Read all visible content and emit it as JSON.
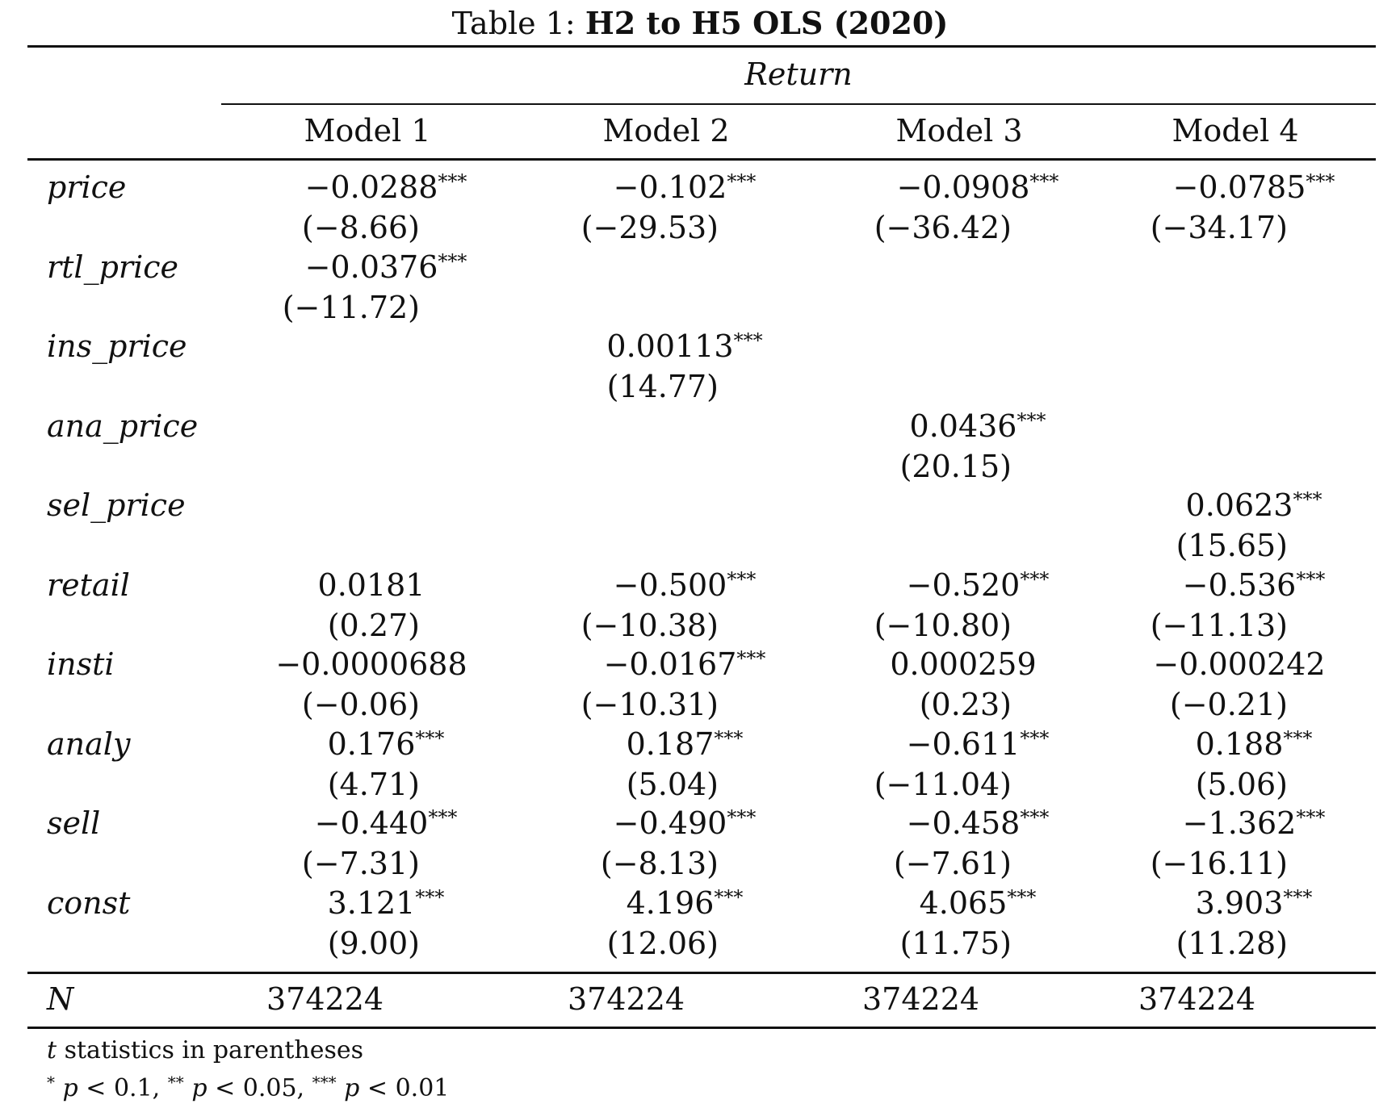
{
  "caption": {
    "prefix": "Table 1:",
    "title": "H2 to H5 OLS (2020)"
  },
  "dependent_variable": "Return",
  "models": [
    "Model 1",
    "Model 2",
    "Model 3",
    "Model 4"
  ],
  "rows": [
    {
      "label": "price",
      "cells": [
        {
          "coef": "−0.0288",
          "stars": "***",
          "t": "(−8.66)"
        },
        {
          "coef": "−0.102",
          "stars": "***",
          "t": "(−29.53)"
        },
        {
          "coef": "−0.0908",
          "stars": "***",
          "t": "(−36.42)"
        },
        {
          "coef": "−0.0785",
          "stars": "***",
          "t": "(−34.17)"
        }
      ]
    },
    {
      "label": "rtl_price",
      "cells": [
        {
          "coef": "−0.0376",
          "stars": "***",
          "t": "(−11.72)"
        },
        null,
        null,
        null
      ]
    },
    {
      "label": "ins_price",
      "cells": [
        null,
        {
          "coef": "0.00113",
          "stars": "***",
          "t": "(14.77)"
        },
        null,
        null
      ]
    },
    {
      "label": "ana_price",
      "cells": [
        null,
        null,
        {
          "coef": "0.0436",
          "stars": "***",
          "t": "(20.15)"
        },
        null
      ]
    },
    {
      "label": "sel_price",
      "cells": [
        null,
        null,
        null,
        {
          "coef": "0.0623",
          "stars": "***",
          "t": "(15.65)"
        }
      ]
    },
    {
      "label": "retail",
      "cells": [
        {
          "coef": "0.0181",
          "stars": "",
          "t": "(0.27)"
        },
        {
          "coef": "−0.500",
          "stars": "***",
          "t": "(−10.38)"
        },
        {
          "coef": "−0.520",
          "stars": "***",
          "t": "(−10.80)"
        },
        {
          "coef": "−0.536",
          "stars": "***",
          "t": "(−11.13)"
        }
      ]
    },
    {
      "label": "insti",
      "cells": [
        {
          "coef": "−0.0000688",
          "stars": "",
          "t": "(−0.06)"
        },
        {
          "coef": "−0.0167",
          "stars": "***",
          "t": "(−10.31)"
        },
        {
          "coef": "0.000259",
          "stars": "",
          "t": "(0.23)"
        },
        {
          "coef": "−0.000242",
          "stars": "",
          "t": "(−0.21)"
        }
      ]
    },
    {
      "label": "analy",
      "cells": [
        {
          "coef": "0.176",
          "stars": "***",
          "t": "(4.71)"
        },
        {
          "coef": "0.187",
          "stars": "***",
          "t": "(5.04)"
        },
        {
          "coef": "−0.611",
          "stars": "***",
          "t": "(−11.04)"
        },
        {
          "coef": "0.188",
          "stars": "***",
          "t": "(5.06)"
        }
      ]
    },
    {
      "label": "sell",
      "cells": [
        {
          "coef": "−0.440",
          "stars": "***",
          "t": "(−7.31)"
        },
        {
          "coef": "−0.490",
          "stars": "***",
          "t": "(−8.13)"
        },
        {
          "coef": "−0.458",
          "stars": "***",
          "t": "(−7.61)"
        },
        {
          "coef": "−1.362",
          "stars": "***",
          "t": "(−16.11)"
        }
      ]
    },
    {
      "label": "const",
      "cells": [
        {
          "coef": "3.121",
          "stars": "***",
          "t": "(9.00)"
        },
        {
          "coef": "4.196",
          "stars": "***",
          "t": "(12.06)"
        },
        {
          "coef": "4.065",
          "stars": "***",
          "t": "(11.75)"
        },
        {
          "coef": "3.903",
          "stars": "***",
          "t": "(11.28)"
        }
      ]
    }
  ],
  "n_row": {
    "label": "N",
    "values": [
      "374224",
      "374224",
      "374224",
      "374224"
    ]
  },
  "notes": {
    "line1_symbol": "t",
    "line1_text": "statistics in parentheses",
    "line2": [
      {
        "stars": "*",
        "p": "p",
        "cond": "< 0.1,"
      },
      {
        "stars": "**",
        "p": "p",
        "cond": "< 0.05,"
      },
      {
        "stars": "***",
        "p": "p",
        "cond": "< 0.01"
      }
    ]
  }
}
